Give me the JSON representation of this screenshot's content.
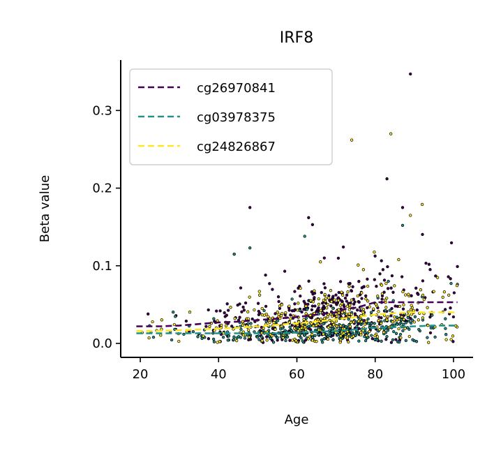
{
  "chart_data": {
    "type": "scatter",
    "title": "IRF8",
    "xlabel": "Age",
    "ylabel": "Beta value",
    "xlim": [
      15,
      105
    ],
    "ylim": [
      -0.018,
      0.365
    ],
    "xticks": [
      20,
      40,
      60,
      80,
      100
    ],
    "xtick_labels": [
      "20",
      "40",
      "60",
      "80",
      "100"
    ],
    "yticks": [
      0.0,
      0.1,
      0.2,
      0.3
    ],
    "ytick_labels": [
      "0.0",
      "0.1",
      "0.2",
      "0.3"
    ],
    "grid": false,
    "legend_position": "top-left",
    "point_count_per_series": 360,
    "series": [
      {
        "name": "cg26970841",
        "color": "#440154",
        "trend": {
          "x": [
            19,
            25,
            30,
            35,
            40,
            45,
            50,
            55,
            60,
            65,
            70,
            72,
            75,
            78,
            80,
            85,
            90,
            95,
            101
          ],
          "y": [
            0.022,
            0.022,
            0.023,
            0.025,
            0.027,
            0.028,
            0.03,
            0.032,
            0.034,
            0.037,
            0.04,
            0.044,
            0.046,
            0.05,
            0.053,
            0.053,
            0.053,
            0.053,
            0.053
          ]
        },
        "outliers": [
          {
            "x": 89,
            "y": 0.347
          },
          {
            "x": 83,
            "y": 0.212
          },
          {
            "x": 48,
            "y": 0.175
          },
          {
            "x": 63,
            "y": 0.162
          },
          {
            "x": 87,
            "y": 0.175
          },
          {
            "x": 64,
            "y": 0.153
          },
          {
            "x": 44,
            "y": 0.115
          },
          {
            "x": 67,
            "y": 0.11
          },
          {
            "x": 101,
            "y": 0.099
          },
          {
            "x": 52,
            "y": 0.088
          },
          {
            "x": 82,
            "y": 0.095
          }
        ]
      },
      {
        "name": "cg03978375",
        "color": "#21918c",
        "trend": {
          "x": [
            19,
            25,
            30,
            35,
            40,
            45,
            50,
            55,
            60,
            65,
            70,
            75,
            80,
            85,
            90,
            95,
            101
          ],
          "y": [
            0.013,
            0.013,
            0.013,
            0.013,
            0.013,
            0.013,
            0.013,
            0.013,
            0.014,
            0.015,
            0.016,
            0.018,
            0.02,
            0.021,
            0.022,
            0.023,
            0.023
          ]
        },
        "outliers": [
          {
            "x": 87,
            "y": 0.152
          },
          {
            "x": 62,
            "y": 0.138
          },
          {
            "x": 48,
            "y": 0.123
          },
          {
            "x": 44,
            "y": 0.115
          },
          {
            "x": 101,
            "y": 0.076
          },
          {
            "x": 92,
            "y": 0.06
          }
        ]
      },
      {
        "name": "cg24826867",
        "color": "#fde725",
        "trend": {
          "x": [
            19,
            25,
            30,
            35,
            40,
            45,
            50,
            55,
            60,
            65,
            70,
            75,
            80,
            85,
            90,
            95,
            101
          ],
          "y": [
            0.016,
            0.016,
            0.017,
            0.018,
            0.019,
            0.02,
            0.022,
            0.024,
            0.026,
            0.028,
            0.031,
            0.034,
            0.037,
            0.039,
            0.04,
            0.04,
            0.04
          ]
        },
        "outliers": [
          {
            "x": 84,
            "y": 0.27
          },
          {
            "x": 74,
            "y": 0.262
          },
          {
            "x": 89,
            "y": 0.165
          },
          {
            "x": 92,
            "y": 0.179
          },
          {
            "x": 66,
            "y": 0.105
          },
          {
            "x": 86,
            "y": 0.108
          },
          {
            "x": 77,
            "y": 0.095
          }
        ]
      }
    ]
  }
}
